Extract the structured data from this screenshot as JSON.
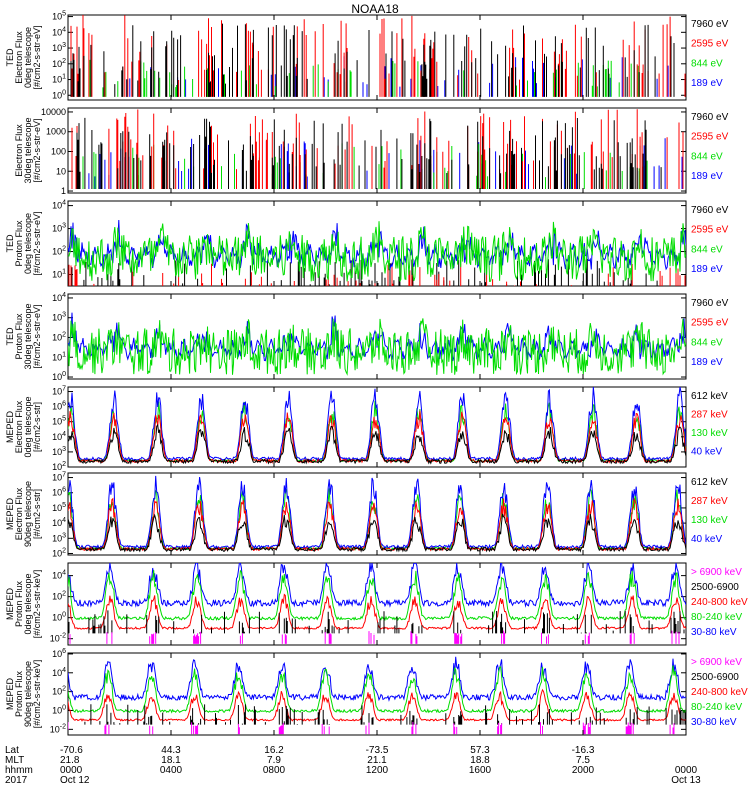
{
  "chart_data": {
    "type": "line",
    "title": "NOAA18",
    "colors": {
      "black": "#000000",
      "red": "#ff0000",
      "green": "#00dd00",
      "blue": "#0000ff",
      "magenta": "#ff00ff"
    },
    "panels": [
      {
        "ylabel": [
          "TED",
          "Electron Flux",
          "0deg telescope",
          "[#/cm2-s-str-eV]"
        ],
        "ticks": [
          "10^0",
          "10^1",
          "10^2",
          "10^3",
          "10^4",
          "10^5"
        ],
        "ylim_exp": [
          -0.3,
          5.1
        ],
        "log": true,
        "legend": [
          {
            "label": "7960 eV",
            "color": "black"
          },
          {
            "label": "2595 eV",
            "color": "red"
          },
          {
            "label": "844 eV",
            "color": "green"
          },
          {
            "label": "189 eV",
            "color": "blue"
          }
        ]
      },
      {
        "ylabel": [
          "",
          "Electron Flux",
          "30deg telescope",
          "[#/cm2-s-str-eV]"
        ],
        "ticks": [
          "1",
          "10",
          "100",
          "1000",
          "10000"
        ],
        "ylim_exp": [
          -0.1,
          4.2
        ],
        "log": true,
        "legend": [
          {
            "label": "7960 eV",
            "color": "black"
          },
          {
            "label": "2595 eV",
            "color": "red"
          },
          {
            "label": "844 eV",
            "color": "green"
          },
          {
            "label": "189 eV",
            "color": "blue"
          }
        ]
      },
      {
        "ylabel": [
          "TED",
          "Proton Flux",
          "0deg telescope",
          "[#/cm2-s-str-eV]"
        ],
        "ticks": [
          "10^1",
          "10^2",
          "10^3",
          "10^4"
        ],
        "ylim_exp": [
          0.5,
          4.2
        ],
        "log": true,
        "legend": [
          {
            "label": "7960 eV",
            "color": "black"
          },
          {
            "label": "2595 eV",
            "color": "red"
          },
          {
            "label": "844 eV",
            "color": "green"
          },
          {
            "label": "189 eV",
            "color": "blue"
          }
        ]
      },
      {
        "ylabel": [
          "TED",
          "Proton Flux",
          "30deg telescope",
          "[#/cm2-s-str-eV]"
        ],
        "ticks": [
          "10^0",
          "10^1",
          "10^2",
          "10^3",
          "10^4"
        ],
        "ylim_exp": [
          -0.1,
          4.2
        ],
        "log": true,
        "legend": [
          {
            "label": "7960 eV",
            "color": "black"
          },
          {
            "label": "2595 eV",
            "color": "red"
          },
          {
            "label": "844 eV",
            "color": "green"
          },
          {
            "label": "189 eV",
            "color": "blue"
          }
        ]
      },
      {
        "ylabel": [
          "MEPED",
          "Electron Flux",
          "0deg telescope",
          "[#/cm2-s-str]"
        ],
        "ticks": [
          "10^2",
          "10^3",
          "10^4",
          "10^5",
          "10^6",
          "10^7"
        ],
        "ylim_exp": [
          2.0,
          7.3
        ],
        "log": true,
        "legend": [
          {
            "label": "612 keV",
            "color": "black"
          },
          {
            "label": "287 keV",
            "color": "red"
          },
          {
            "label": "130 keV",
            "color": "green"
          },
          {
            "label": "40 keV",
            "color": "blue"
          }
        ]
      },
      {
        "ylabel": [
          "MEPED",
          "Electron Flux",
          "90deg telescope",
          "[#/cm2-s-str]"
        ],
        "ticks": [
          "10^2",
          "10^3",
          "10^4",
          "10^5",
          "10^6",
          "10^7"
        ],
        "ylim_exp": [
          1.9,
          7.3
        ],
        "log": true,
        "legend": [
          {
            "label": "612 keV",
            "color": "black"
          },
          {
            "label": "287 keV",
            "color": "red"
          },
          {
            "label": "130 keV",
            "color": "green"
          },
          {
            "label": "40 keV",
            "color": "blue"
          }
        ]
      },
      {
        "ylabel": [
          "MEPED",
          "Proton Flux",
          "0deg telescope",
          "[#/cm2-s-str-keV]"
        ],
        "ticks": [
          "10^-2",
          "10^0",
          "10^2",
          "10^4"
        ],
        "ylim_exp": [
          -2.6,
          5.2
        ],
        "log": true,
        "legend": [
          {
            "label": "> 6900 keV",
            "color": "magenta"
          },
          {
            "label": "2500-6900",
            "color": "black"
          },
          {
            "label": "240-800 keV",
            "color": "red"
          },
          {
            "label": "80-240 keV",
            "color": "green"
          },
          {
            "label": "30-80 keV",
            "color": "blue"
          }
        ]
      },
      {
        "ylabel": [
          "MEPED",
          "Proton Flux",
          "90deg telescope",
          "[#/cm2-s-str-keV]"
        ],
        "ticks": [
          "10^-2",
          "10^0",
          "10^2",
          "10^4",
          "10^6"
        ],
        "ylim_exp": [
          -2.6,
          6.1
        ],
        "log": true,
        "legend": [
          {
            "label": "> 6900 keV",
            "color": "magenta"
          },
          {
            "label": "2500-6900",
            "color": "black"
          },
          {
            "label": "240-800 keV",
            "color": "red"
          },
          {
            "label": "80-240 keV",
            "color": "green"
          },
          {
            "label": "30-80 keV",
            "color": "blue"
          }
        ]
      }
    ],
    "x_axis": {
      "row_labels": [
        "Lat",
        "MLT",
        "hhmm",
        "2017"
      ],
      "positions": [
        0,
        4,
        8,
        12,
        16,
        20,
        24
      ],
      "lat": [
        "-70.6",
        "44.3",
        "16.2",
        "-73.5",
        "57.3",
        "-16.3",
        ""
      ],
      "mlt": [
        "21.8",
        "18.1",
        "7.9",
        "21.1",
        "18.8",
        "7.5",
        ""
      ],
      "hhmm": [
        "0000",
        "0400",
        "0800",
        "1200",
        "1600",
        "2000",
        "0000"
      ],
      "date": [
        "Oct 12",
        "",
        "",
        "",
        "",
        "",
        "Oct 13"
      ],
      "xlim_hours": [
        0,
        24
      ]
    }
  }
}
